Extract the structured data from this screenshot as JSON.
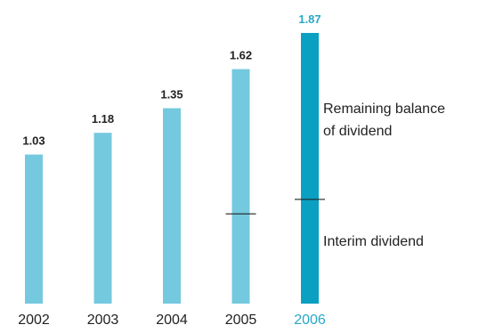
{
  "chart_data": {
    "type": "bar",
    "categories": [
      "2002",
      "2003",
      "2004",
      "2005",
      "2006"
    ],
    "values": [
      1.03,
      1.18,
      1.35,
      1.62,
      1.87
    ],
    "data_labels": [
      "1.03",
      "1.18",
      "1.35",
      "1.62",
      "1.87"
    ],
    "highlight_category": "2006",
    "interim_marks": [
      {
        "category": "2005",
        "value": 0.62
      },
      {
        "category": "2006",
        "value": 0.72
      }
    ],
    "annotations": {
      "remaining_line1": "Remaining balance",
      "remaining_line2": "of dividend",
      "interim": "Interim dividend"
    },
    "ylim": [
      0,
      1.87
    ],
    "grid": false,
    "colors": {
      "bar": "#74c9df",
      "bar_highlight": "#0aa0c2",
      "label": "#222222",
      "label_highlight": "#27a9c7",
      "marker": "#222222"
    }
  }
}
